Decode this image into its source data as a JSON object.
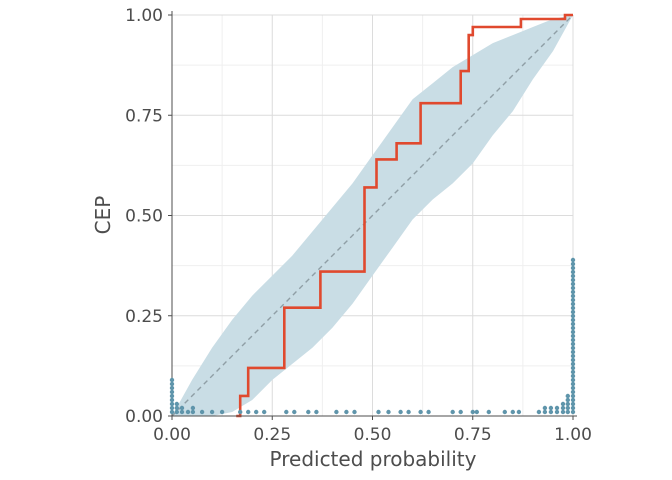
{
  "chart_data": {
    "type": "line",
    "title": "",
    "xlabel": "Predicted probability",
    "ylabel": "CEP",
    "xlim": [
      0,
      1
    ],
    "ylim": [
      0,
      1
    ],
    "x_ticks": [
      "0.00",
      "0.25",
      "0.50",
      "0.75",
      "1.00"
    ],
    "y_ticks": [
      "0.00",
      "0.25",
      "0.50",
      "0.75",
      "1.00"
    ],
    "grid": true,
    "legend": "none",
    "colors": {
      "step": "#e0492e",
      "band": "#c9dde5",
      "diagonal": "#8f9ea5",
      "points": "#5f95ab",
      "grid_major": "#dcdcdc",
      "grid_minor": "#efefef",
      "axis": "#4d4d4d"
    },
    "diagonal": {
      "x": [
        0,
        1
      ],
      "y": [
        0,
        1
      ]
    },
    "band": {
      "x": [
        0.0,
        0.05,
        0.1,
        0.15,
        0.2,
        0.25,
        0.3,
        0.35,
        0.4,
        0.45,
        0.5,
        0.55,
        0.6,
        0.65,
        0.7,
        0.75,
        0.8,
        0.85,
        0.9,
        0.95,
        1.0
      ],
      "lower": [
        0.0,
        0.0,
        0.0,
        0.01,
        0.04,
        0.09,
        0.13,
        0.17,
        0.22,
        0.28,
        0.35,
        0.42,
        0.49,
        0.54,
        0.58,
        0.63,
        0.7,
        0.76,
        0.84,
        0.91,
        1.0
      ],
      "upper": [
        0.0,
        0.09,
        0.17,
        0.24,
        0.3,
        0.35,
        0.4,
        0.46,
        0.52,
        0.58,
        0.65,
        0.72,
        0.79,
        0.83,
        0.87,
        0.9,
        0.93,
        0.95,
        0.97,
        0.99,
        1.0
      ]
    },
    "series": [
      {
        "step_x": [
          0.16,
          0.17,
          0.17,
          0.19,
          0.19,
          0.28,
          0.28,
          0.37,
          0.37,
          0.48,
          0.48,
          0.51,
          0.51,
          0.56,
          0.56,
          0.62,
          0.62,
          0.72,
          0.72,
          0.74,
          0.74,
          0.75,
          0.75,
          0.87,
          0.87,
          0.98,
          0.98,
          1.0
        ],
        "step_y": [
          0.0,
          0.0,
          0.05,
          0.05,
          0.12,
          0.12,
          0.27,
          0.27,
          0.36,
          0.36,
          0.57,
          0.57,
          0.64,
          0.64,
          0.68,
          0.68,
          0.78,
          0.78,
          0.86,
          0.86,
          0.95,
          0.95,
          0.97,
          0.97,
          0.99,
          0.99,
          1.0,
          1.0
        ]
      }
    ],
    "points": [
      {
        "x": 0.0,
        "n": 9
      },
      {
        "x": 0.012,
        "n": 3
      },
      {
        "x": 0.025,
        "n": 2
      },
      {
        "x": 0.04,
        "n": 1
      },
      {
        "x": 0.052,
        "n": 2
      },
      {
        "x": 0.075,
        "n": 1
      },
      {
        "x": 0.1,
        "n": 1
      },
      {
        "x": 0.125,
        "n": 1
      },
      {
        "x": 0.17,
        "n": 1
      },
      {
        "x": 0.19,
        "n": 1
      },
      {
        "x": 0.21,
        "n": 1
      },
      {
        "x": 0.23,
        "n": 1
      },
      {
        "x": 0.285,
        "n": 1
      },
      {
        "x": 0.305,
        "n": 1
      },
      {
        "x": 0.34,
        "n": 1
      },
      {
        "x": 0.36,
        "n": 1
      },
      {
        "x": 0.41,
        "n": 1
      },
      {
        "x": 0.435,
        "n": 1
      },
      {
        "x": 0.455,
        "n": 1
      },
      {
        "x": 0.515,
        "n": 1
      },
      {
        "x": 0.54,
        "n": 1
      },
      {
        "x": 0.57,
        "n": 1
      },
      {
        "x": 0.59,
        "n": 1
      },
      {
        "x": 0.62,
        "n": 1
      },
      {
        "x": 0.64,
        "n": 1
      },
      {
        "x": 0.7,
        "n": 1
      },
      {
        "x": 0.72,
        "n": 1
      },
      {
        "x": 0.75,
        "n": 1
      },
      {
        "x": 0.76,
        "n": 1
      },
      {
        "x": 0.79,
        "n": 1
      },
      {
        "x": 0.83,
        "n": 1
      },
      {
        "x": 0.85,
        "n": 1
      },
      {
        "x": 0.865,
        "n": 1
      },
      {
        "x": 0.915,
        "n": 1
      },
      {
        "x": 0.93,
        "n": 2
      },
      {
        "x": 0.945,
        "n": 2
      },
      {
        "x": 0.96,
        "n": 2
      },
      {
        "x": 0.975,
        "n": 3
      },
      {
        "x": 0.987,
        "n": 5
      },
      {
        "x": 1.0,
        "n": 39
      }
    ]
  }
}
